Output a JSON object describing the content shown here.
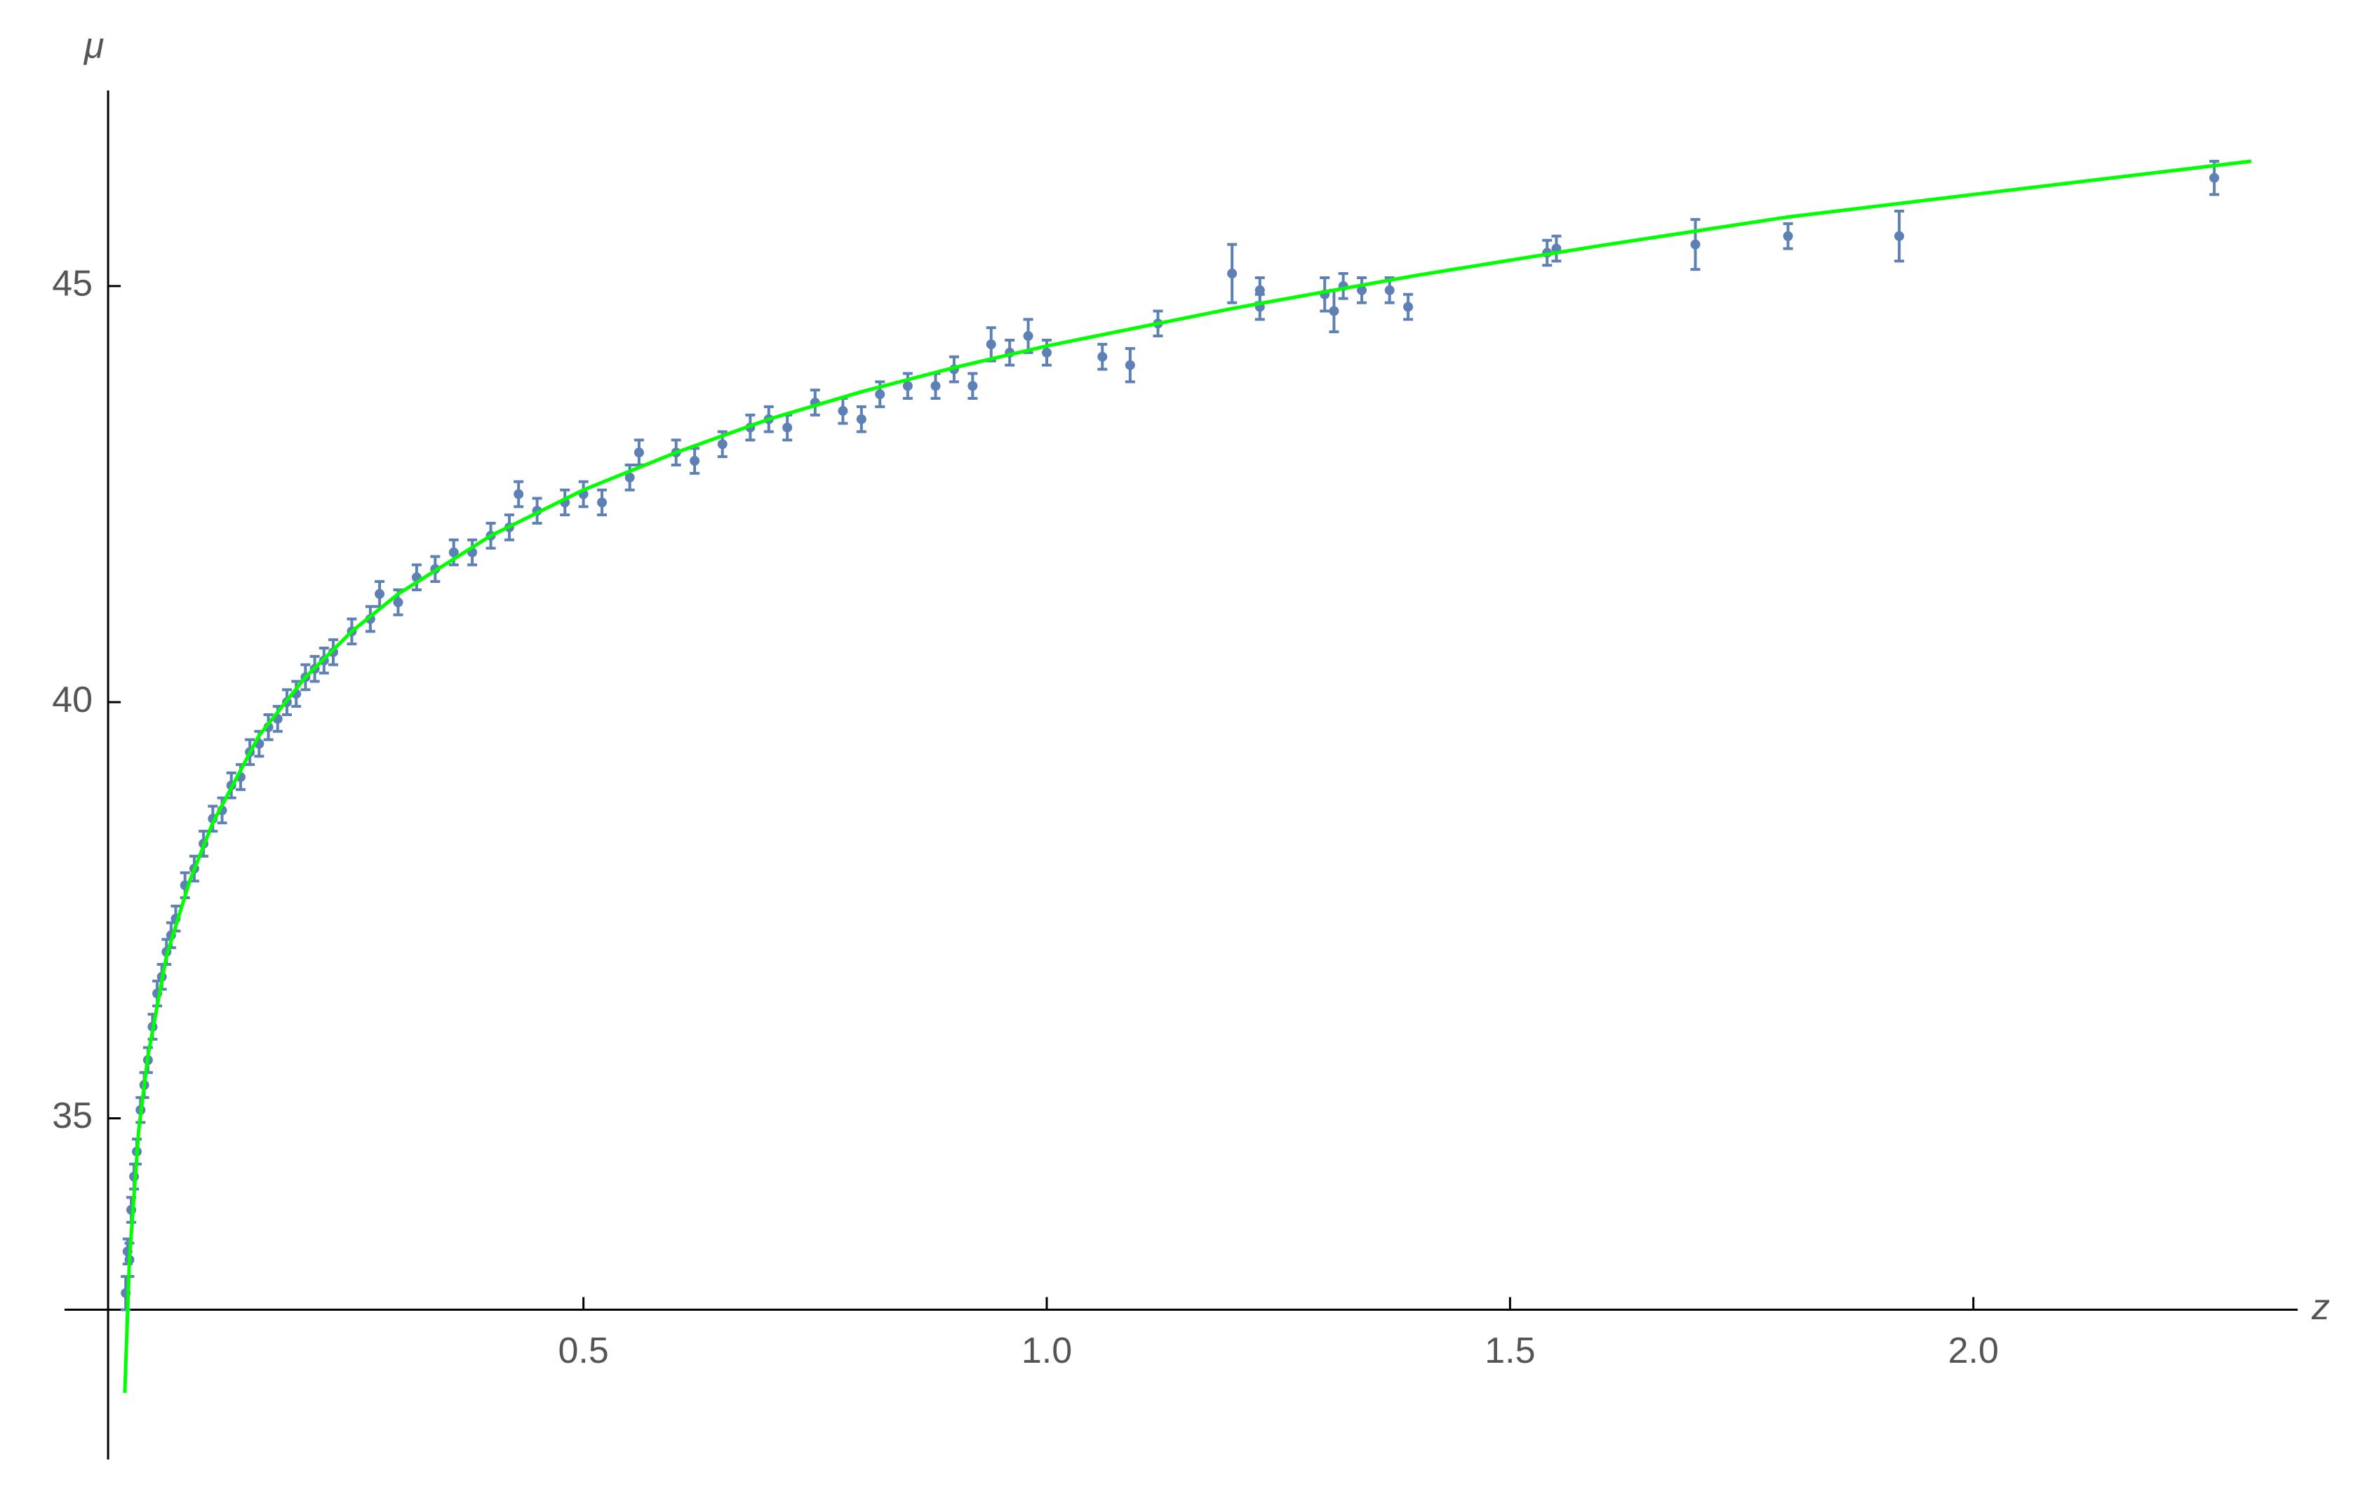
{
  "chart_data": {
    "type": "errorbar",
    "xlabel": "z",
    "ylabel": "μ",
    "xlim": [
      -0.06,
      2.35
    ],
    "ylim": [
      30.9,
      47.35
    ],
    "origin": [
      -0.013,
      32.7
    ],
    "xticks": [
      0.5,
      {
        "value": 1,
        "label": "1.0"
      },
      1.5,
      {
        "value": 2,
        "label": "2.0"
      }
    ],
    "yticks": [
      35,
      40,
      45
    ],
    "series": [
      {
        "type": "errorbar",
        "color": "#5e81b5",
        "x": [
          0.006,
          0.008,
          0.01,
          0.012,
          0.015,
          0.018,
          0.022,
          0.026,
          0.03,
          0.035,
          0.04,
          0.045,
          0.05,
          0.055,
          0.06,
          0.07,
          0.08,
          0.09,
          0.1,
          0.11,
          0.12,
          0.13,
          0.14,
          0.15,
          0.16,
          0.17,
          0.18,
          0.19,
          0.2,
          0.21,
          0.22,
          0.23,
          0.25,
          0.27,
          0.28,
          0.3,
          0.32,
          0.34,
          0.36,
          0.38,
          0.4,
          0.42,
          0.43,
          0.45,
          0.48,
          0.5,
          0.52,
          0.55,
          0.56,
          0.6,
          0.62,
          0.65,
          0.68,
          0.7,
          0.72,
          0.75,
          0.78,
          0.8,
          0.82,
          0.85,
          0.88,
          0.9,
          0.92,
          0.94,
          0.96,
          0.98,
          1.0,
          1.06,
          1.09,
          1.12,
          1.2,
          1.23,
          1.23,
          1.3,
          1.31,
          1.32,
          1.34,
          1.37,
          1.39,
          1.54,
          1.55,
          1.7,
          1.8,
          1.92,
          2.26
        ],
        "values": [
          32.9,
          33.4,
          33.3,
          33.9,
          34.3,
          34.6,
          35.1,
          35.4,
          35.7,
          36.1,
          36.5,
          36.7,
          37.0,
          37.2,
          37.4,
          37.8,
          38.0,
          38.3,
          38.6,
          38.7,
          39.0,
          39.1,
          39.4,
          39.5,
          39.7,
          39.8,
          40.0,
          40.1,
          40.3,
          40.4,
          40.5,
          40.6,
          40.85,
          41.0,
          41.3,
          41.2,
          41.5,
          41.6,
          41.8,
          41.8,
          42.0,
          42.1,
          42.5,
          42.3,
          42.4,
          42.5,
          42.4,
          42.7,
          43.0,
          43.0,
          42.9,
          43.1,
          43.3,
          43.4,
          43.3,
          43.6,
          43.5,
          43.4,
          43.7,
          43.8,
          43.8,
          44.0,
          43.8,
          44.3,
          44.2,
          44.4,
          44.2,
          44.15,
          44.05,
          44.55,
          45.15,
          44.95,
          44.75,
          44.9,
          44.7,
          45.0,
          44.95,
          44.95,
          44.75,
          45.4,
          45.45,
          45.5,
          45.6,
          45.6,
          46.3
        ],
        "errors": [
          0.2,
          0.15,
          0.2,
          0.15,
          0.15,
          0.15,
          0.15,
          0.15,
          0.15,
          0.15,
          0.15,
          0.15,
          0.15,
          0.15,
          0.15,
          0.15,
          0.15,
          0.15,
          0.15,
          0.15,
          0.15,
          0.15,
          0.15,
          0.15,
          0.15,
          0.15,
          0.15,
          0.15,
          0.15,
          0.15,
          0.15,
          0.15,
          0.15,
          0.15,
          0.15,
          0.15,
          0.15,
          0.15,
          0.15,
          0.15,
          0.15,
          0.15,
          0.15,
          0.15,
          0.15,
          0.15,
          0.15,
          0.15,
          0.15,
          0.15,
          0.15,
          0.15,
          0.15,
          0.15,
          0.15,
          0.15,
          0.15,
          0.15,
          0.15,
          0.15,
          0.15,
          0.15,
          0.15,
          0.2,
          0.15,
          0.2,
          0.15,
          0.15,
          0.2,
          0.15,
          0.35,
          0.15,
          0.15,
          0.2,
          0.25,
          0.15,
          0.15,
          0.15,
          0.15,
          0.15,
          0.15,
          0.3,
          0.15,
          0.3,
          0.2
        ]
      },
      {
        "type": "line",
        "color": "#00ff00",
        "x": [
          0.005,
          0.01,
          0.02,
          0.03,
          0.05,
          0.075,
          0.1,
          0.15,
          0.2,
          0.25,
          0.3,
          0.4,
          0.5,
          0.6,
          0.7,
          0.8,
          0.9,
          1.0,
          1.2,
          1.4,
          1.6,
          1.8,
          2.0,
          2.3
        ],
        "values": [
          31.7,
          33.3,
          34.85,
          35.75,
          36.95,
          37.85,
          38.55,
          39.6,
          40.3,
          40.85,
          41.3,
          42.0,
          42.55,
          43.0,
          43.4,
          43.73,
          44.02,
          44.28,
          44.73,
          45.13,
          45.49,
          45.83,
          46.1,
          46.5
        ]
      }
    ]
  }
}
